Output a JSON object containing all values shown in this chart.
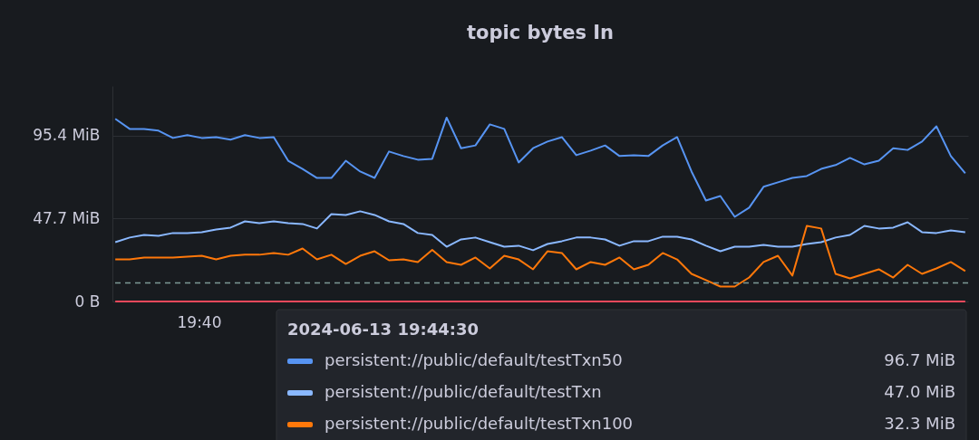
{
  "chart_data": {
    "type": "line",
    "title": "topic bytes In",
    "categories": [
      null,
      null,
      null,
      null,
      null,
      null,
      null,
      null,
      null,
      null,
      null,
      null,
      null,
      null,
      null,
      null,
      null,
      null,
      null,
      null,
      null,
      null,
      null,
      null,
      null,
      null,
      null,
      null,
      null,
      null,
      null,
      null,
      null,
      null,
      null,
      null,
      null,
      null,
      null,
      null,
      null,
      null,
      null,
      null,
      null,
      null,
      null,
      null,
      null,
      null,
      null,
      null,
      null,
      null,
      null,
      null,
      null,
      null,
      null,
      null
    ],
    "series": [
      {
        "name": "persistent://public/default/testTxn50",
        "color": "#5794f2",
        "values": [
          105.1,
          99.3,
          99.3,
          98.3,
          94.1,
          95.7,
          94.1,
          94.6,
          93.1,
          95.7,
          94.1,
          94.6,
          81.0,
          76.3,
          71.1,
          71.1,
          81.0,
          74.8,
          71.1,
          86.3,
          83.7,
          81.6,
          82.1,
          105.8,
          88.2,
          89.8,
          101.9,
          99.3,
          80.0,
          88.2,
          92.0,
          94.6,
          84.2,
          86.8,
          89.8,
          83.7,
          84.2,
          83.7,
          89.8,
          94.6,
          74.8,
          58.1,
          60.7,
          48.7,
          54.0,
          66.0,
          68.6,
          71.1,
          72.2,
          76.3,
          78.5,
          82.6,
          78.9,
          81.0,
          88.2,
          87.2,
          92.0,
          100.8,
          83.7,
          73.8
        ]
      },
      {
        "name": "persistent://public/default/testTxn",
        "color": "#8ab8ff",
        "values": [
          34.1,
          36.8,
          38.3,
          37.8,
          39.4,
          39.4,
          39.9,
          41.4,
          42.5,
          46.1,
          45.1,
          46.1,
          45.1,
          44.6,
          42.0,
          50.3,
          49.8,
          51.9,
          49.8,
          46.1,
          44.6,
          39.4,
          38.3,
          31.5,
          35.7,
          36.8,
          34.1,
          31.5,
          32.1,
          29.5,
          33.1,
          34.7,
          36.8,
          36.8,
          35.7,
          32.1,
          34.7,
          34.7,
          37.3,
          37.3,
          35.7,
          32.1,
          28.9,
          31.5,
          31.5,
          32.6,
          31.5,
          31.5,
          33.1,
          34.1,
          36.8,
          38.3,
          43.5,
          42.0,
          42.5,
          45.6,
          39.9,
          39.4,
          40.9,
          39.9
        ]
      },
      {
        "name": "persistent://public/default/testTxn100",
        "color": "#ff780a",
        "values": [
          24.2,
          24.2,
          25.3,
          25.3,
          25.3,
          25.8,
          26.3,
          24.2,
          26.3,
          26.9,
          26.9,
          27.9,
          26.9,
          30.5,
          24.2,
          26.9,
          21.6,
          26.3,
          28.9,
          23.7,
          24.2,
          22.7,
          29.7,
          22.7,
          21.1,
          25.3,
          19.0,
          26.3,
          24.2,
          18.5,
          28.9,
          27.9,
          18.5,
          22.7,
          21.1,
          25.3,
          18.5,
          21.1,
          27.9,
          24.2,
          15.9,
          12.3,
          8.6,
          8.6,
          13.8,
          22.7,
          26.3,
          14.9,
          43.5,
          42.0,
          15.9,
          13.3,
          15.9,
          18.5,
          13.8,
          21.1,
          15.9,
          19.0,
          22.7,
          17.5
        ]
      },
      {
        "color": "#f2495c",
        "values": [
          0,
          0,
          0,
          0,
          0,
          0,
          0,
          0,
          0,
          0,
          0,
          0,
          0,
          0,
          0,
          0,
          0,
          0,
          0,
          0,
          0,
          0,
          0,
          0,
          0,
          0,
          0,
          0,
          0,
          0,
          0,
          0,
          0,
          0,
          0,
          0,
          0,
          0,
          0,
          0,
          0,
          0,
          0,
          0,
          0,
          0,
          0,
          0,
          0,
          0,
          0,
          0,
          0,
          0,
          0,
          0,
          0,
          0,
          0,
          0
        ]
      }
    ],
    "ylim": [
      0,
      124
    ],
    "yticks": [
      {
        "value": 0,
        "label": "0 B"
      },
      {
        "value": 47.7,
        "label": "47.7 MiB"
      },
      {
        "value": 95.4,
        "label": "95.4 MiB"
      }
    ],
    "ref_lines": [
      {
        "axis": "y",
        "value": 10.7,
        "color": "#7d9a96",
        "line_style": "dashed"
      }
    ],
    "annotations": [
      "2024-06-13 19:44:30",
      "96.7 MiB",
      "47.0 MiB",
      "32.3 MiB",
      "19:40"
    ],
    "grid": "y",
    "legend": "bottom",
    "marker": "none",
    "line_style": "solid"
  }
}
